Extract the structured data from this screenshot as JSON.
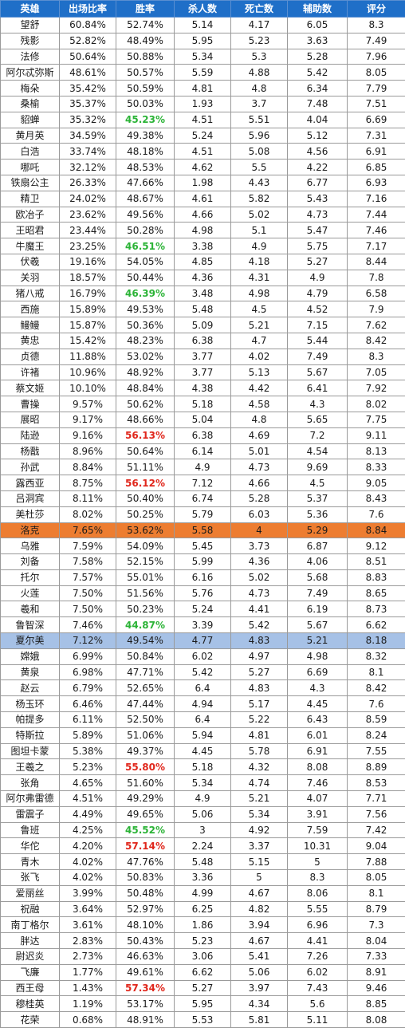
{
  "headers": [
    "英雄",
    "出场比率",
    "胜率",
    "杀人数",
    "死亡数",
    "辅助数",
    "评分"
  ],
  "rows": [
    [
      "望舒",
      "60.84%",
      "52.74%",
      "5.14",
      "4.17",
      "6.05",
      "8.3"
    ],
    [
      "残影",
      "52.82%",
      "48.49%",
      "5.95",
      "5.23",
      "3.63",
      "7.49"
    ],
    [
      "法修",
      "50.64%",
      "50.88%",
      "5.34",
      "5.3",
      "5.28",
      "7.96"
    ],
    [
      "阿尔忒弥斯",
      "48.61%",
      "50.57%",
      "5.59",
      "4.88",
      "5.42",
      "8.05"
    ],
    [
      "梅朵",
      "35.42%",
      "50.59%",
      "4.81",
      "4.8",
      "6.34",
      "7.79"
    ],
    [
      "桑榆",
      "35.37%",
      "50.03%",
      "1.93",
      "3.7",
      "7.48",
      "7.51"
    ],
    [
      "貂蝉",
      "35.32%",
      "45.23%",
      "4.51",
      "5.51",
      "4.04",
      "6.69"
    ],
    [
      "黄月英",
      "34.59%",
      "49.38%",
      "5.24",
      "5.96",
      "5.12",
      "7.31"
    ],
    [
      "白浩",
      "33.74%",
      "48.18%",
      "4.51",
      "5.08",
      "4.56",
      "6.91"
    ],
    [
      "哪吒",
      "32.12%",
      "48.53%",
      "4.62",
      "5.5",
      "4.22",
      "6.85"
    ],
    [
      "铁扇公主",
      "26.33%",
      "47.66%",
      "1.98",
      "4.43",
      "6.77",
      "6.93"
    ],
    [
      "精卫",
      "24.02%",
      "48.67%",
      "4.61",
      "5.82",
      "5.43",
      "7.16"
    ],
    [
      "欧冶子",
      "23.62%",
      "49.56%",
      "4.66",
      "5.02",
      "4.73",
      "7.44"
    ],
    [
      "王昭君",
      "23.44%",
      "50.28%",
      "4.98",
      "5.1",
      "5.47",
      "7.46"
    ],
    [
      "牛魔王",
      "23.25%",
      "46.51%",
      "3.38",
      "4.9",
      "5.75",
      "7.17"
    ],
    [
      "伏羲",
      "19.16%",
      "54.05%",
      "4.85",
      "4.18",
      "5.27",
      "8.44"
    ],
    [
      "关羽",
      "18.57%",
      "50.44%",
      "4.36",
      "4.31",
      "4.9",
      "7.8"
    ],
    [
      "猪八戒",
      "16.79%",
      "46.39%",
      "3.48",
      "4.98",
      "4.79",
      "6.58"
    ],
    [
      "西施",
      "15.89%",
      "49.53%",
      "5.48",
      "4.5",
      "4.52",
      "7.9"
    ],
    [
      "鳗鳗",
      "15.87%",
      "50.36%",
      "5.09",
      "5.21",
      "7.15",
      "7.62"
    ],
    [
      "黄忠",
      "15.42%",
      "48.23%",
      "6.38",
      "4.7",
      "5.44",
      "8.42"
    ],
    [
      "贞德",
      "11.88%",
      "53.02%",
      "3.77",
      "4.02",
      "7.49",
      "8.3"
    ],
    [
      "许褚",
      "10.96%",
      "48.92%",
      "3.77",
      "5.13",
      "5.67",
      "7.05"
    ],
    [
      "蔡文姬",
      "10.10%",
      "48.84%",
      "4.38",
      "4.42",
      "6.41",
      "7.92"
    ],
    [
      "曹操",
      "9.57%",
      "50.62%",
      "5.18",
      "4.58",
      "4.3",
      "8.02"
    ],
    [
      "展昭",
      "9.17%",
      "48.66%",
      "5.04",
      "4.8",
      "5.65",
      "7.75"
    ],
    [
      "陆逊",
      "9.16%",
      "56.13%",
      "6.38",
      "4.69",
      "7.2",
      "9.11"
    ],
    [
      "杨戬",
      "8.96%",
      "50.64%",
      "6.14",
      "5.01",
      "4.54",
      "8.13"
    ],
    [
      "孙武",
      "8.84%",
      "51.11%",
      "4.9",
      "4.73",
      "9.69",
      "8.33"
    ],
    [
      "露西亚",
      "8.75%",
      "56.12%",
      "7.12",
      "4.66",
      "4.5",
      "9.05"
    ],
    [
      "吕洞宾",
      "8.11%",
      "50.40%",
      "6.74",
      "5.28",
      "5.37",
      "8.43"
    ],
    [
      "美杜莎",
      "8.02%",
      "50.25%",
      "5.79",
      "6.03",
      "5.36",
      "7.6"
    ],
    [
      "洛克",
      "7.65%",
      "53.62%",
      "5.58",
      "4",
      "5.29",
      "8.84"
    ],
    [
      "乌雅",
      "7.59%",
      "54.09%",
      "5.45",
      "3.73",
      "6.87",
      "9.12"
    ],
    [
      "刘备",
      "7.58%",
      "52.15%",
      "5.99",
      "4.36",
      "4.06",
      "8.51"
    ],
    [
      "托尔",
      "7.57%",
      "55.01%",
      "6.16",
      "5.02",
      "5.68",
      "8.83"
    ],
    [
      "火莲",
      "7.50%",
      "51.56%",
      "5.76",
      "4.73",
      "7.49",
      "8.65"
    ],
    [
      "羲和",
      "7.50%",
      "50.23%",
      "5.24",
      "4.41",
      "6.19",
      "8.73"
    ],
    [
      "鲁智深",
      "7.46%",
      "44.87%",
      "3.39",
      "5.42",
      "5.67",
      "6.62"
    ],
    [
      "夏尔美",
      "7.12%",
      "49.54%",
      "4.77",
      "4.83",
      "5.21",
      "8.18"
    ],
    [
      "嫦娥",
      "6.99%",
      "50.84%",
      "6.02",
      "4.97",
      "4.98",
      "8.32"
    ],
    [
      "黄泉",
      "6.98%",
      "47.71%",
      "5.42",
      "5.27",
      "6.69",
      "8.1"
    ],
    [
      "赵云",
      "6.79%",
      "52.65%",
      "6.4",
      "4.83",
      "4.3",
      "8.42"
    ],
    [
      "杨玉环",
      "6.46%",
      "47.44%",
      "4.94",
      "5.17",
      "4.45",
      "7.6"
    ],
    [
      "帕提多",
      "6.11%",
      "52.50%",
      "6.4",
      "5.22",
      "6.43",
      "8.59"
    ],
    [
      "特斯拉",
      "5.89%",
      "51.06%",
      "5.94",
      "4.81",
      "6.01",
      "8.24"
    ],
    [
      "图坦卡蒙",
      "5.38%",
      "49.37%",
      "4.45",
      "5.78",
      "6.91",
      "7.55"
    ],
    [
      "王羲之",
      "5.23%",
      "55.80%",
      "5.18",
      "4.32",
      "8.08",
      "8.89"
    ],
    [
      "张角",
      "4.65%",
      "51.60%",
      "5.34",
      "4.74",
      "7.46",
      "8.53"
    ],
    [
      "阿尔弗雷德",
      "4.51%",
      "49.29%",
      "4.9",
      "5.21",
      "4.07",
      "7.71"
    ],
    [
      "雷震子",
      "4.49%",
      "49.65%",
      "5.06",
      "5.34",
      "3.91",
      "7.56"
    ],
    [
      "鲁班",
      "4.25%",
      "45.52%",
      "3",
      "4.92",
      "7.59",
      "7.42"
    ],
    [
      "华佗",
      "4.20%",
      "57.14%",
      "2.24",
      "3.37",
      "10.31",
      "9.04"
    ],
    [
      "青木",
      "4.02%",
      "47.76%",
      "5.48",
      "5.15",
      "5",
      "7.88"
    ],
    [
      "张飞",
      "4.02%",
      "50.83%",
      "3.36",
      "5",
      "8.3",
      "8.05"
    ],
    [
      "爱丽丝",
      "3.99%",
      "50.48%",
      "4.99",
      "4.67",
      "8.06",
      "8.1"
    ],
    [
      "祝融",
      "3.64%",
      "52.97%",
      "6.25",
      "4.82",
      "5.55",
      "8.79"
    ],
    [
      "南丁格尔",
      "3.61%",
      "48.10%",
      "1.86",
      "3.94",
      "6.96",
      "7.3"
    ],
    [
      "胖达",
      "2.83%",
      "50.43%",
      "5.23",
      "4.67",
      "4.41",
      "8.04"
    ],
    [
      "尉迟炎",
      "2.73%",
      "46.63%",
      "3.06",
      "5.41",
      "7.26",
      "7.33"
    ],
    [
      "飞廉",
      "1.77%",
      "49.61%",
      "6.62",
      "5.06",
      "6.02",
      "8.91"
    ],
    [
      "西王母",
      "1.43%",
      "57.34%",
      "5.27",
      "3.97",
      "7.43",
      "9.46"
    ],
    [
      "穆桂英",
      "1.19%",
      "53.17%",
      "5.95",
      "4.34",
      "5.6",
      "8.85"
    ],
    [
      "花荣",
      "0.68%",
      "48.91%",
      "5.53",
      "5.81",
      "5.11",
      "8.08"
    ]
  ],
  "highlight_rows": {
    "32": "orange",
    "39": "blue"
  },
  "green_winrate_rows": [
    6,
    14,
    17,
    38,
    51
  ],
  "red_winrate_rows": [
    26,
    29,
    47,
    52,
    61
  ],
  "colors": {
    "header_bg": "#1f6fc8",
    "orange_row": "#ed7d31",
    "blue_row": "#a6c1e6",
    "low_winrate": "#2bb336",
    "high_winrate": "#e0261b"
  }
}
